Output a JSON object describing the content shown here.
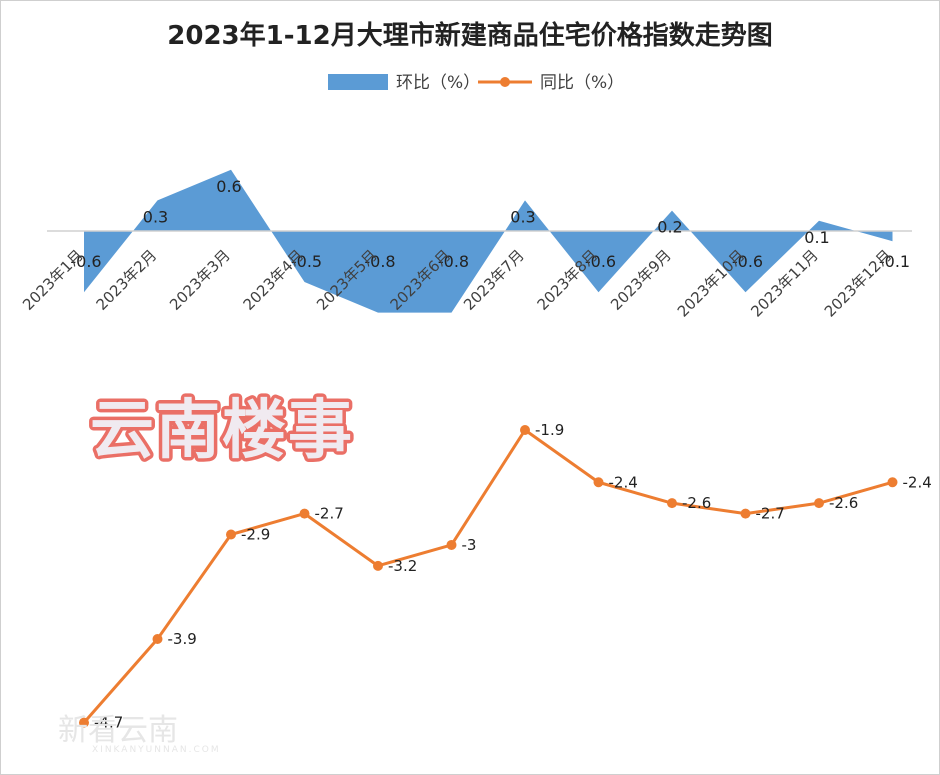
{
  "title": "2023年1-12月大理市新建商品住宅价格指数走势图",
  "legend": {
    "mom": "环比（%）",
    "yoy": "同比（%）"
  },
  "watermark": "云南楼事",
  "corner_watermark": {
    "text": "新看云南",
    "sub": "XINKANYUNNAN.COM"
  },
  "chart_data": {
    "type": "area",
    "categories": [
      "2023年1月",
      "2023年2月",
      "2023年3月",
      "2023年4月",
      "2023年5月",
      "2023年6月",
      "2023年7月",
      "2023年8月",
      "2023年9月",
      "2023年10月",
      "2023年11月",
      "2023年12月"
    ],
    "series": [
      {
        "name": "环比（%）",
        "type": "area",
        "values": [
          -0.6,
          0.3,
          0.6,
          -0.5,
          -0.8,
          -0.8,
          0.3,
          -0.6,
          0.2,
          -0.6,
          0.1,
          -0.1
        ],
        "color": "#5b9bd5"
      },
      {
        "name": "同比（%）",
        "type": "line",
        "values": [
          -4.7,
          -3.9,
          -2.9,
          -2.7,
          -3.2,
          -3,
          -1.9,
          -2.4,
          -2.6,
          -2.7,
          -2.6,
          -2.4
        ],
        "color": "#ed7d31"
      }
    ],
    "grid": false,
    "legend_position": "top"
  }
}
